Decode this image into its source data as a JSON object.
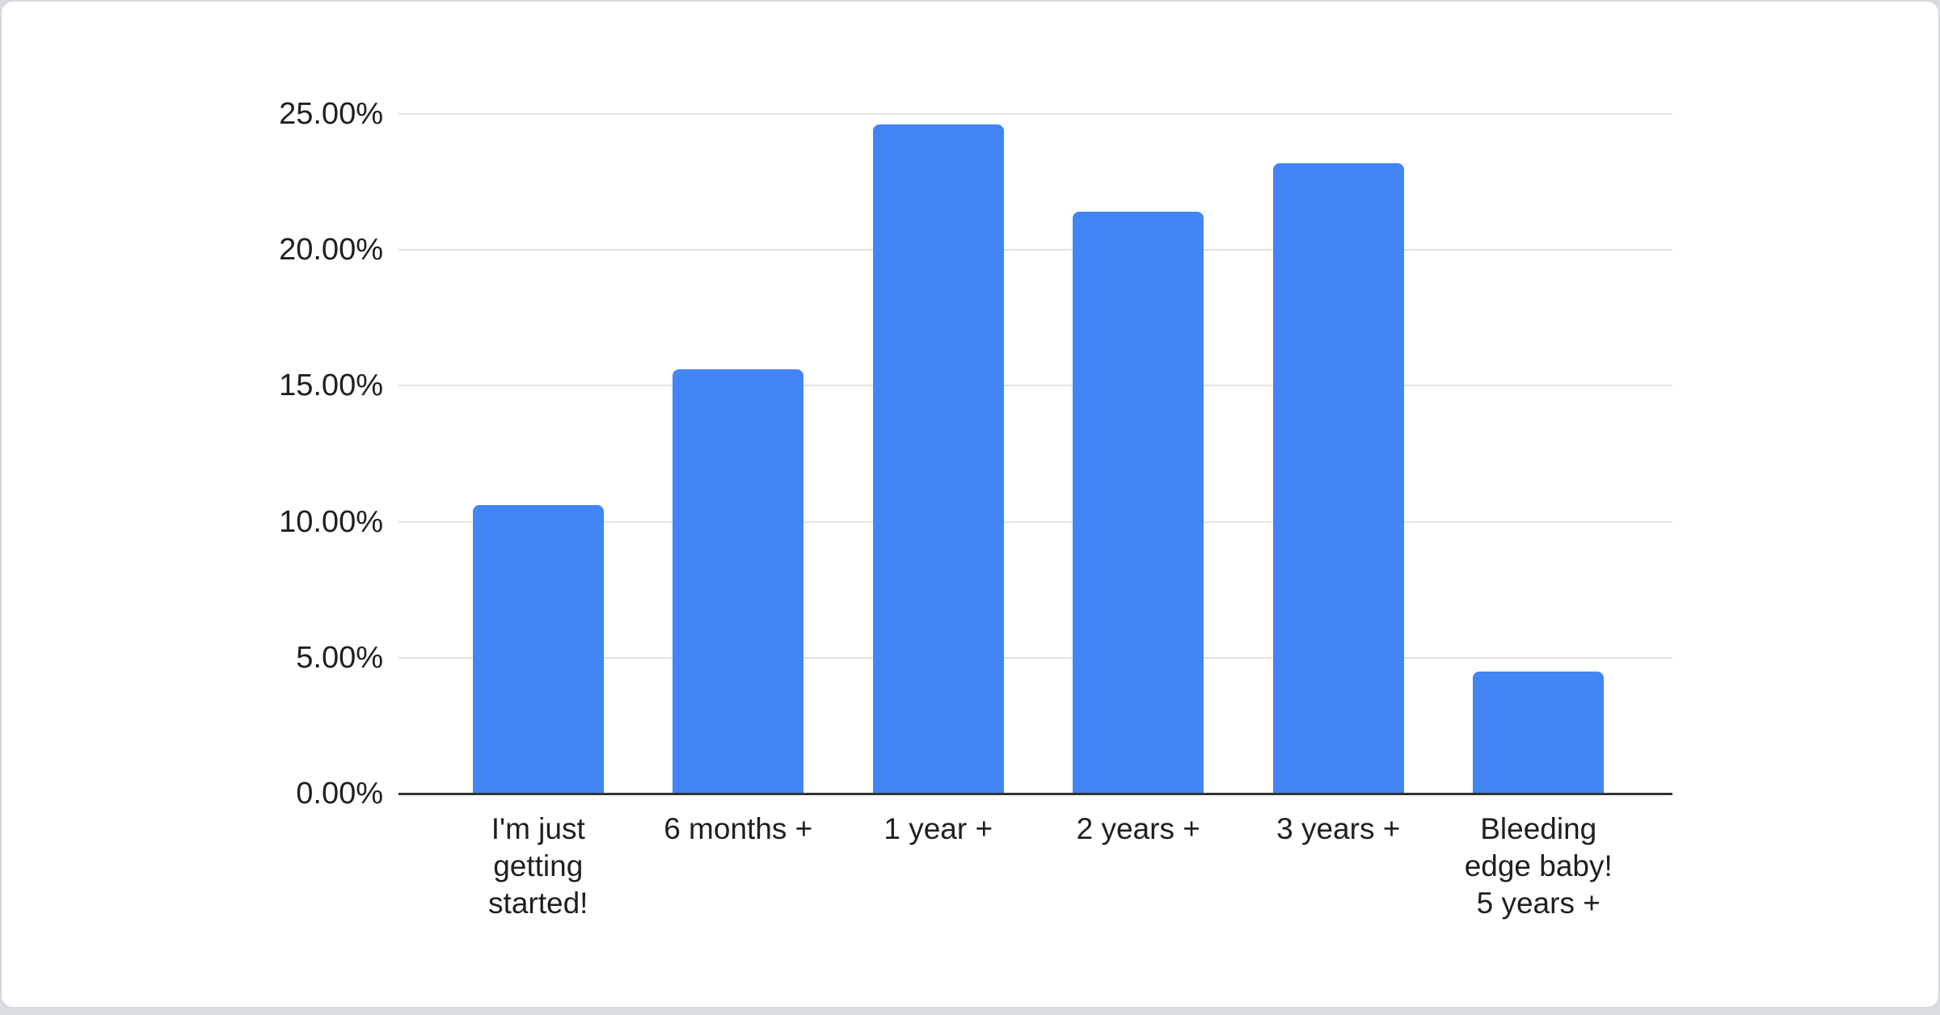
{
  "page": {
    "background_color": "#d9dde1",
    "card_background": "#ffffff",
    "card_border_color": "#d5d9de"
  },
  "chart_data": {
    "type": "bar",
    "title": "",
    "xlabel": "",
    "ylabel": "",
    "legend": "none",
    "grid": true,
    "ylim": [
      0,
      25
    ],
    "categories": [
      "I'm just getting started!",
      "6 months +",
      "1 year +",
      "2 years +",
      "3 years +",
      "Bleeding edge baby! 5 years +"
    ],
    "values": [
      10.6,
      15.6,
      24.6,
      21.4,
      23.2,
      4.5
    ],
    "value_unit": "%",
    "bar_color": "#4285f4",
    "axis_line_color": "#333333",
    "gridline_color": "#e3e3e3",
    "tick_label_color": "#1f1f1f",
    "category_label_color": "#1f1f1f",
    "y_ticks": [
      {
        "label": "0.00%",
        "value": 0
      },
      {
        "label": "5.00%",
        "value": 5
      },
      {
        "label": "10.00%",
        "value": 10
      },
      {
        "label": "15.00%",
        "value": 15
      },
      {
        "label": "20.00%",
        "value": 20
      },
      {
        "label": "25.00%",
        "value": 25
      }
    ],
    "category_label_lines": [
      [
        "I'm just",
        "getting",
        "started!"
      ],
      [
        "6 months +"
      ],
      [
        "1 year +"
      ],
      [
        "2 years +"
      ],
      [
        "3 years +"
      ],
      [
        "Bleeding",
        "edge baby!",
        "5 years +"
      ]
    ]
  }
}
